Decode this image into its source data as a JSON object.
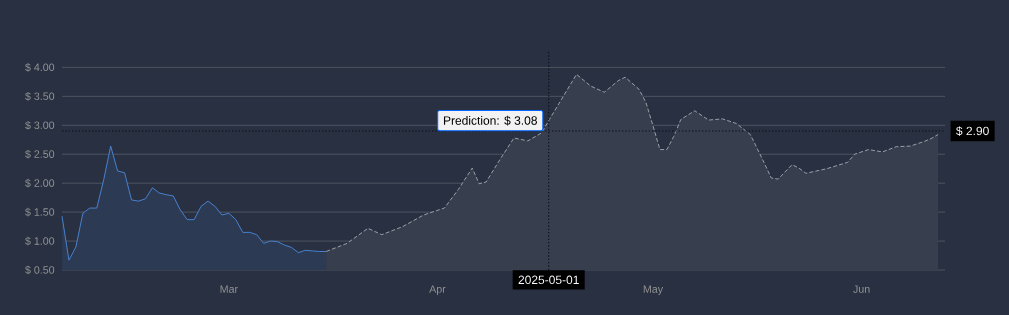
{
  "chart_data": {
    "type": "area",
    "xlim": [
      "2025-02-20",
      "2025-06-27"
    ],
    "xticks": [
      {
        "value": "2025-03-16",
        "label": "Mar"
      },
      {
        "value": "2025-04-15",
        "label": "Apr"
      },
      {
        "value": "2025-05-16",
        "label": "May"
      },
      {
        "value": "2025-06-15",
        "label": "Jun"
      }
    ],
    "ylim": [
      0.5,
      4.3
    ],
    "yticks": [
      {
        "value": 0.5,
        "label": "$ 0.50"
      },
      {
        "value": 1.0,
        "label": "$ 1.00"
      },
      {
        "value": 1.5,
        "label": "$ 1.50"
      },
      {
        "value": 2.0,
        "label": "$ 2.00"
      },
      {
        "value": 2.5,
        "label": "$ 2.50"
      },
      {
        "value": 3.0,
        "label": "$ 3.00"
      },
      {
        "value": 3.5,
        "label": "$ 3.50"
      },
      {
        "value": 4.0,
        "label": "$ 4.00"
      }
    ],
    "grid": "y",
    "series": [
      {
        "color": "#4a86d8",
        "line_style": "solid",
        "x": [
          "2025-02-20",
          "2025-02-21",
          "2025-02-22",
          "2025-02-23",
          "2025-02-24",
          "2025-02-25",
          "2025-02-26",
          "2025-02-27",
          "2025-02-28",
          "2025-03-01",
          "2025-03-02",
          "2025-03-03",
          "2025-03-04",
          "2025-03-05",
          "2025-03-06",
          "2025-03-07",
          "2025-03-08",
          "2025-03-09",
          "2025-03-10",
          "2025-03-11",
          "2025-03-12",
          "2025-03-13",
          "2025-03-14",
          "2025-03-15",
          "2025-03-16",
          "2025-03-17",
          "2025-03-18",
          "2025-03-19",
          "2025-03-20",
          "2025-03-21",
          "2025-03-22",
          "2025-03-23",
          "2025-03-24",
          "2025-03-25",
          "2025-03-26",
          "2025-03-27",
          "2025-03-28",
          "2025-03-29",
          "2025-03-30"
        ],
        "values": [
          1.43,
          0.67,
          0.9,
          1.48,
          1.57,
          1.57,
          2.06,
          2.64,
          2.21,
          2.18,
          1.71,
          1.69,
          1.73,
          1.92,
          1.83,
          1.8,
          1.78,
          1.54,
          1.37,
          1.37,
          1.6,
          1.69,
          1.6,
          1.45,
          1.48,
          1.37,
          1.15,
          1.15,
          1.11,
          0.96,
          1.0,
          0.99,
          0.93,
          0.89,
          0.8,
          0.84,
          0.83,
          0.82,
          0.82
        ]
      },
      {
        "color": "#a3a7ad",
        "line_style": "dashed",
        "x": [
          "2025-03-30",
          "2025-04-02",
          "2025-04-05",
          "2025-04-07",
          "2025-04-10",
          "2025-04-13",
          "2025-04-16",
          "2025-04-18",
          "2025-04-20",
          "2025-04-21",
          "2025-04-22",
          "2025-04-24",
          "2025-04-26",
          "2025-04-28",
          "2025-04-30",
          "2025-05-01",
          "2025-05-03",
          "2025-05-05",
          "2025-05-07",
          "2025-05-09",
          "2025-05-11",
          "2025-05-12",
          "2025-05-14",
          "2025-05-15",
          "2025-05-16",
          "2025-05-17",
          "2025-05-18",
          "2025-05-19",
          "2025-05-20",
          "2025-05-22",
          "2025-05-24",
          "2025-05-26",
          "2025-05-28",
          "2025-05-30",
          "2025-06-01",
          "2025-06-02",
          "2025-06-03",
          "2025-06-05",
          "2025-06-06",
          "2025-06-07",
          "2025-06-10",
          "2025-06-13",
          "2025-06-14",
          "2025-06-16",
          "2025-06-18",
          "2025-06-20",
          "2025-06-22",
          "2025-06-24",
          "2025-06-25",
          "2025-06-26"
        ],
        "values": [
          0.82,
          0.96,
          1.22,
          1.11,
          1.25,
          1.45,
          1.57,
          1.89,
          2.26,
          1.99,
          2.02,
          2.41,
          2.78,
          2.73,
          2.87,
          3.08,
          3.48,
          3.88,
          3.68,
          3.57,
          3.77,
          3.83,
          3.62,
          3.39,
          2.99,
          2.58,
          2.58,
          2.81,
          3.1,
          3.25,
          3.09,
          3.11,
          3.03,
          2.84,
          2.35,
          2.09,
          2.07,
          2.32,
          2.26,
          2.17,
          2.25,
          2.36,
          2.5,
          2.58,
          2.54,
          2.63,
          2.64,
          2.72,
          2.77,
          2.84
        ]
      }
    ],
    "ref_lines": [
      {
        "axis": "x",
        "value": "2025-05-01",
        "label": "2025-05-01",
        "line_style": "dotted"
      },
      {
        "axis": "y",
        "value": 2.9,
        "label": "$ 2.90",
        "line_style": "dotted"
      }
    ],
    "annotations": [
      {
        "text": "Prediction: $ 3.08",
        "x": "2025-05-01",
        "y": 3.08
      }
    ]
  }
}
